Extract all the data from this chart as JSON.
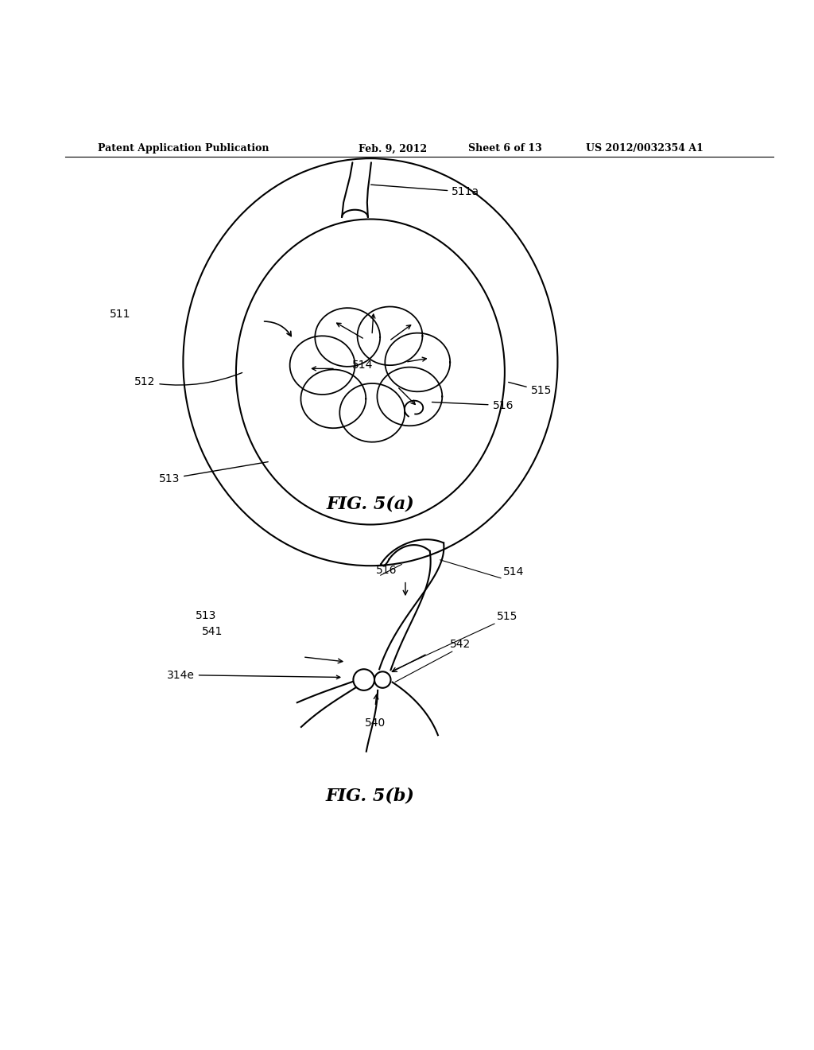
{
  "background_color": "#ffffff",
  "header_text": "Patent Application Publication",
  "header_date": "Feb. 9, 2012",
  "header_sheet": "Sheet 6 of 13",
  "header_patent": "US 2012/0032354 A1",
  "fig_a_caption": "FIG. 5(a)",
  "fig_b_caption": "FIG. 5(b)"
}
